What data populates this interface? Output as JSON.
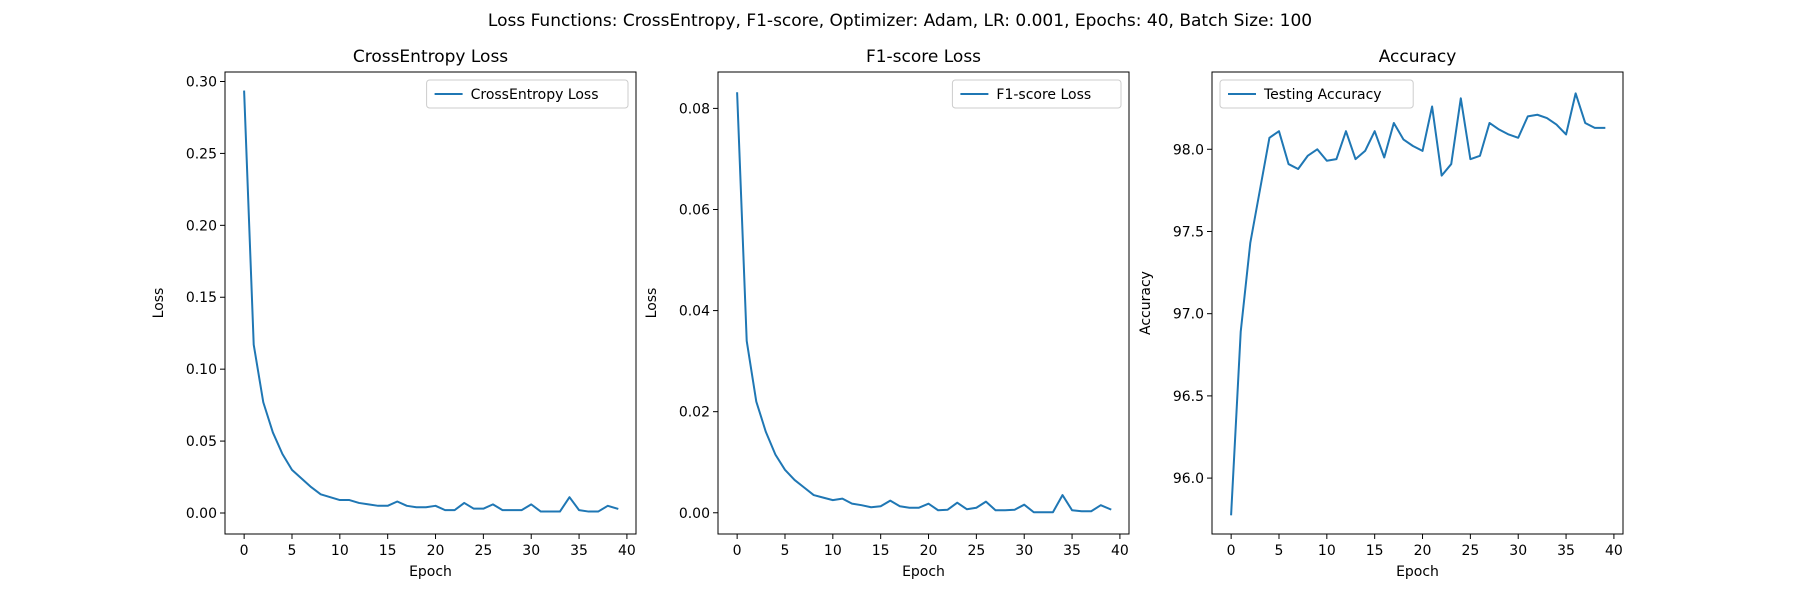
{
  "figure_title": "Loss Functions: CrossEntropy, F1-score, Optimizer: Adam, LR: 0.001, Epochs: 40, Batch Size: 100",
  "line_color": "#1f77b4",
  "chart_data": [
    {
      "type": "line",
      "title": "CrossEntropy Loss",
      "xlabel": "Epoch",
      "ylabel": "Loss",
      "xlim": [
        -2,
        40.95
      ],
      "ylim": [
        -0.0146,
        0.3066
      ],
      "xticks": [
        0,
        5,
        10,
        15,
        20,
        25,
        30,
        35,
        40
      ],
      "xtick_labels": [
        "0",
        "5",
        "10",
        "15",
        "20",
        "25",
        "30",
        "35",
        "40"
      ],
      "yticks": [
        0.0,
        0.05,
        0.1,
        0.15,
        0.2,
        0.25,
        0.3
      ],
      "ytick_labels": [
        "0.00",
        "0.05",
        "0.10",
        "0.15",
        "0.20",
        "0.25",
        "0.30"
      ],
      "legend_loc": "top-right",
      "grid": false,
      "series": [
        {
          "name": "CrossEntropy Loss",
          "x": [
            0,
            1,
            2,
            3,
            4,
            5,
            6,
            7,
            8,
            9,
            10,
            11,
            12,
            13,
            14,
            15,
            16,
            17,
            18,
            19,
            20,
            21,
            22,
            23,
            24,
            25,
            26,
            27,
            28,
            29,
            30,
            31,
            32,
            33,
            34,
            35,
            36,
            37,
            38,
            39
          ],
          "values": [
            0.293,
            0.117,
            0.077,
            0.056,
            0.041,
            0.03,
            0.024,
            0.018,
            0.013,
            0.011,
            0.009,
            0.009,
            0.007,
            0.006,
            0.005,
            0.005,
            0.008,
            0.005,
            0.004,
            0.004,
            0.005,
            0.002,
            0.002,
            0.007,
            0.003,
            0.003,
            0.006,
            0.002,
            0.002,
            0.002,
            0.006,
            0.001,
            0.001,
            0.001,
            0.011,
            0.002,
            0.001,
            0.001,
            0.005,
            0.003
          ]
        }
      ]
    },
    {
      "type": "line",
      "title": "F1-score Loss",
      "xlabel": "Epoch",
      "ylabel": "Loss",
      "xlim": [
        -2,
        40.95
      ],
      "ylim": [
        -0.0042,
        0.0872
      ],
      "xticks": [
        0,
        5,
        10,
        15,
        20,
        25,
        30,
        35,
        40
      ],
      "xtick_labels": [
        "0",
        "5",
        "10",
        "15",
        "20",
        "25",
        "30",
        "35",
        "40"
      ],
      "yticks": [
        0.0,
        0.02,
        0.04,
        0.06,
        0.08
      ],
      "ytick_labels": [
        "0.00",
        "0.02",
        "0.04",
        "0.06",
        "0.08"
      ],
      "legend_loc": "top-right",
      "grid": false,
      "series": [
        {
          "name": "F1-score Loss",
          "x": [
            0,
            1,
            2,
            3,
            4,
            5,
            6,
            7,
            8,
            9,
            10,
            11,
            12,
            13,
            14,
            15,
            16,
            17,
            18,
            19,
            20,
            21,
            22,
            23,
            24,
            25,
            26,
            27,
            28,
            29,
            30,
            31,
            32,
            33,
            34,
            35,
            36,
            37,
            38,
            39
          ],
          "values": [
            0.083,
            0.034,
            0.022,
            0.016,
            0.0115,
            0.0085,
            0.0065,
            0.005,
            0.0035,
            0.003,
            0.0025,
            0.0028,
            0.0018,
            0.0015,
            0.0011,
            0.0013,
            0.0024,
            0.0013,
            0.001,
            0.001,
            0.0018,
            0.0005,
            0.0006,
            0.002,
            0.0007,
            0.001,
            0.0022,
            0.0005,
            0.0005,
            0.0006,
            0.0016,
            0.0001,
            0.0001,
            0.0001,
            0.0035,
            0.0005,
            0.0003,
            0.0003,
            0.0015,
            0.0007
          ]
        }
      ]
    },
    {
      "type": "line",
      "title": "Accuracy",
      "xlabel": "Epoch",
      "ylabel": "Accuracy",
      "xlim": [
        -2,
        40.95
      ],
      "ylim": [
        95.66,
        98.47
      ],
      "xticks": [
        0,
        5,
        10,
        15,
        20,
        25,
        30,
        35,
        40
      ],
      "xtick_labels": [
        "0",
        "5",
        "10",
        "15",
        "20",
        "25",
        "30",
        "35",
        "40"
      ],
      "yticks": [
        96.0,
        96.5,
        97.0,
        97.5,
        98.0
      ],
      "ytick_labels": [
        "96.0",
        "96.5",
        "97.0",
        "97.5",
        "98.0"
      ],
      "legend_loc": "top-left",
      "grid": false,
      "series": [
        {
          "name": "Testing Accuracy",
          "x": [
            0,
            1,
            2,
            3,
            4,
            5,
            6,
            7,
            8,
            9,
            10,
            11,
            12,
            13,
            14,
            15,
            16,
            17,
            18,
            19,
            20,
            21,
            22,
            23,
            24,
            25,
            26,
            27,
            28,
            29,
            30,
            31,
            32,
            33,
            34,
            35,
            36,
            37,
            38,
            39
          ],
          "values": [
            95.78,
            96.89,
            97.43,
            97.75,
            98.07,
            98.11,
            97.91,
            97.88,
            97.96,
            98.0,
            97.93,
            97.94,
            98.11,
            97.94,
            97.99,
            98.11,
            97.95,
            98.16,
            98.06,
            98.02,
            97.99,
            98.26,
            97.84,
            97.91,
            98.31,
            97.94,
            97.96,
            98.16,
            98.12,
            98.09,
            98.07,
            98.2,
            98.21,
            98.19,
            98.15,
            98.09,
            98.34,
            98.16,
            98.13,
            98.13
          ]
        }
      ]
    }
  ]
}
